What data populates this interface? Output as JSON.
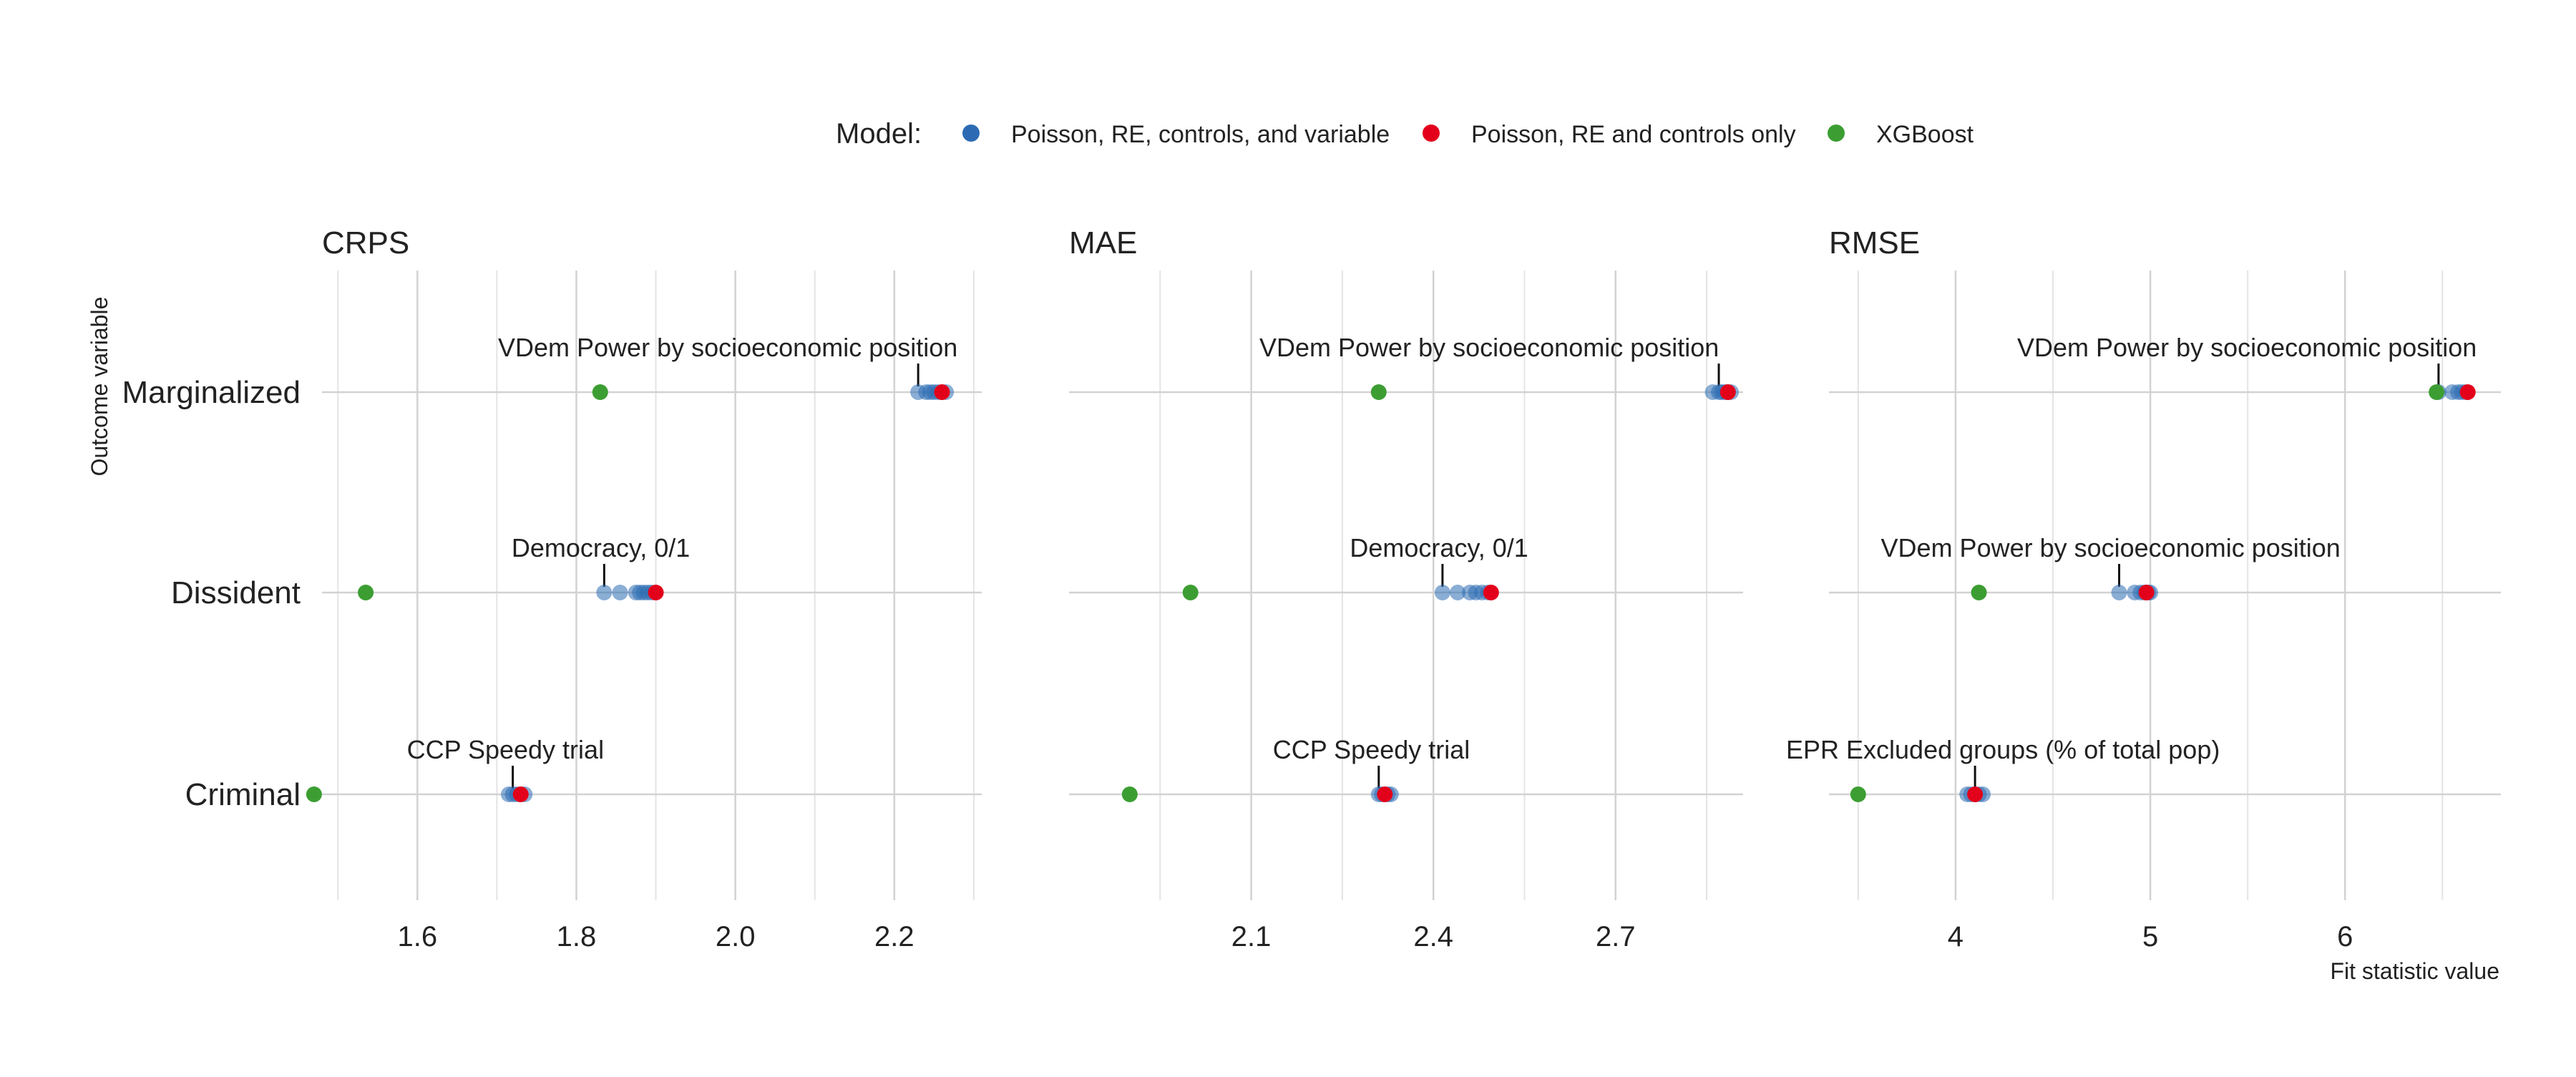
{
  "legend": {
    "title": "Model:",
    "entries": [
      {
        "label": "Poisson, RE, controls, and variable",
        "color": "#2c6bb3"
      },
      {
        "label": "Poisson, RE and controls only",
        "color": "#e3001b"
      },
      {
        "label": "XGBoost",
        "color": "#3c9e32"
      }
    ]
  },
  "ylabel": "Outcome variable",
  "xlabel": "Fit statistic value",
  "chart_data": [
    {
      "type": "scatter",
      "title": "CRPS",
      "categories": [
        "Marginalized",
        "Dissident",
        "Criminal"
      ],
      "xlim": [
        1.48,
        2.31
      ],
      "ticks": [
        1.6,
        1.8,
        2.0,
        2.2
      ],
      "tick_labels": [
        "1.6",
        "1.8",
        "2.0",
        "2.2"
      ],
      "minor_ticks": [
        1.5,
        1.7,
        1.9,
        2.1,
        2.3
      ],
      "series": [
        {
          "name": "Poisson, RE, controls, and variable",
          "points": {
            "Marginalized": [
              2.23,
              2.24,
              2.245,
              2.25,
              2.255,
              2.26,
              2.265
            ],
            "Dissident": [
              1.835,
              1.855,
              1.875,
              1.88,
              1.885,
              1.89,
              1.895
            ],
            "Criminal": [
              1.715,
              1.72,
              1.725,
              1.73,
              1.735
            ]
          }
        },
        {
          "name": "Poisson, RE and controls only",
          "points": {
            "Marginalized": [
              2.26
            ],
            "Dissident": [
              1.9
            ],
            "Criminal": [
              1.73
            ]
          }
        },
        {
          "name": "XGBoost",
          "points": {
            "Marginalized": [
              1.83
            ],
            "Dissident": [
              1.535
            ],
            "Criminal": [
              1.47
            ]
          }
        }
      ],
      "annotations": [
        {
          "text": "VDem Power by socioeconomic position",
          "category": "Marginalized",
          "x": 2.23
        },
        {
          "text": "Democracy, 0/1",
          "category": "Dissident",
          "x": 1.835
        },
        {
          "text": "CCP Speedy trial",
          "category": "Criminal",
          "x": 1.72
        }
      ]
    },
    {
      "type": "scatter",
      "title": "MAE",
      "categories": [
        "Marginalized",
        "Dissident",
        "Criminal"
      ],
      "xlim": [
        1.8,
        2.91
      ],
      "ticks": [
        2.1,
        2.4,
        2.7
      ],
      "tick_labels": [
        "2.1",
        "2.4",
        "2.7"
      ],
      "minor_ticks": [
        1.95,
        2.25,
        2.55,
        2.85
      ],
      "series": [
        {
          "name": "Poisson, RE, controls, and variable",
          "points": {
            "Marginalized": [
              2.86,
              2.87,
              2.875,
              2.88,
              2.885,
              2.89
            ],
            "Dissident": [
              2.415,
              2.44,
              2.46,
              2.47,
              2.48,
              2.49
            ],
            "Criminal": [
              2.31,
              2.315,
              2.32,
              2.325,
              2.33
            ]
          }
        },
        {
          "name": "Poisson, RE and controls only",
          "points": {
            "Marginalized": [
              2.885
            ],
            "Dissident": [
              2.495
            ],
            "Criminal": [
              2.32
            ]
          }
        },
        {
          "name": "XGBoost",
          "points": {
            "Marginalized": [
              2.31
            ],
            "Dissident": [
              2.0
            ],
            "Criminal": [
              1.9
            ]
          }
        }
      ],
      "annotations": [
        {
          "text": "VDem Power by socioeconomic position",
          "category": "Marginalized",
          "x": 2.87
        },
        {
          "text": "Democracy, 0/1",
          "category": "Dissident",
          "x": 2.415
        },
        {
          "text": "CCP Speedy trial",
          "category": "Criminal",
          "x": 2.31
        }
      ]
    },
    {
      "type": "scatter",
      "title": "RMSE",
      "categories": [
        "Marginalized",
        "Dissident",
        "Criminal"
      ],
      "xlim": [
        3.35,
        6.8
      ],
      "ticks": [
        4,
        5,
        6
      ],
      "tick_labels": [
        "4",
        "5",
        "6"
      ],
      "minor_ticks": [
        3.5,
        4.5,
        5.5,
        6.5
      ],
      "series": [
        {
          "name": "Poisson, RE, controls, and variable",
          "points": {
            "Marginalized": [
              6.48,
              6.55,
              6.58,
              6.6,
              6.62
            ],
            "Dissident": [
              4.84,
              4.92,
              4.95,
              4.97,
              4.99,
              5.0
            ],
            "Criminal": [
              4.06,
              4.08,
              4.1,
              4.12,
              4.14
            ]
          }
        },
        {
          "name": "Poisson, RE and controls only",
          "points": {
            "Marginalized": [
              6.63
            ],
            "Dissident": [
              4.98
            ],
            "Criminal": [
              4.1
            ]
          }
        },
        {
          "name": "XGBoost",
          "points": {
            "Marginalized": [
              6.47
            ],
            "Dissident": [
              4.12
            ],
            "Criminal": [
              3.5
            ]
          }
        }
      ],
      "annotations": [
        {
          "text": "VDem Power by socioeconomic position",
          "category": "Marginalized",
          "x": 6.48
        },
        {
          "text": "VDem Power by socioeconomic position",
          "category": "Dissident",
          "x": 4.84
        },
        {
          "text": "EPR Excluded groups (% of total pop)",
          "category": "Criminal",
          "x": 4.1
        }
      ]
    }
  ]
}
